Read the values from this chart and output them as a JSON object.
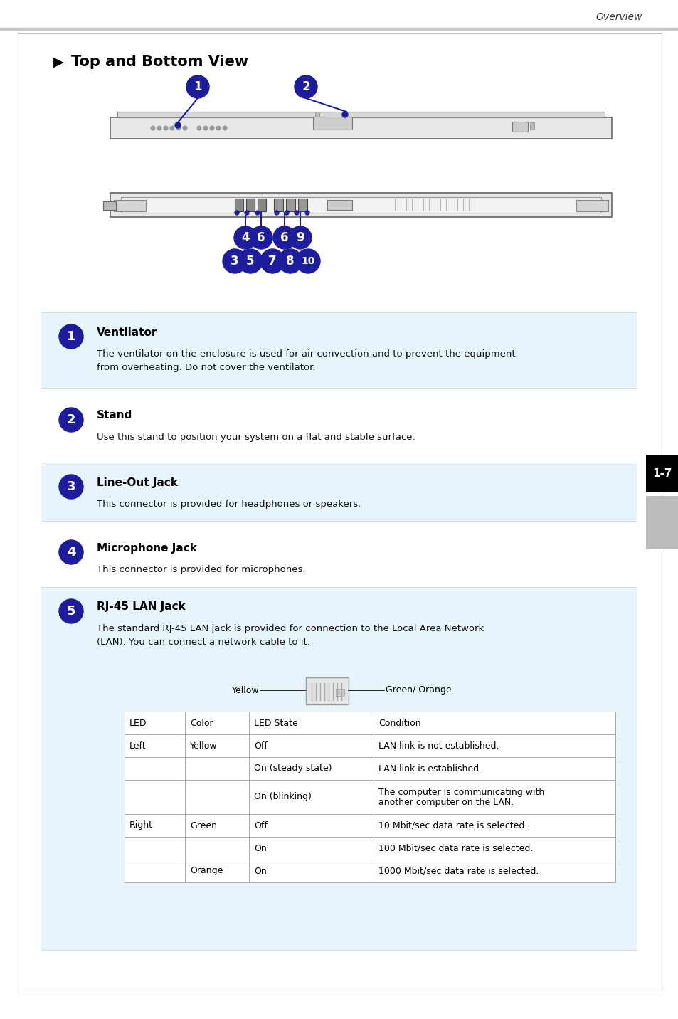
{
  "page_title": "Overview",
  "section_title": "Top and Bottom View",
  "bg_color": "#ffffff",
  "light_blue": "#e8f4fc",
  "dark_blue": "#1c1c9c",
  "items": [
    {
      "num": "1",
      "title": "Ventilator",
      "desc": "The ventilator on the enclosure is used for air convection and to prevent the equipment\nfrom overheating. Do not cover the ventilator.",
      "has_bg": true
    },
    {
      "num": "2",
      "title": "Stand",
      "desc": "Use this stand to position your system on a flat and stable surface.",
      "has_bg": false
    },
    {
      "num": "3",
      "title": "Line-Out Jack",
      "desc": "This connector is provided for headphones or speakers.",
      "has_bg": true
    },
    {
      "num": "4",
      "title": "Microphone Jack",
      "desc": "This connector is provided for microphones.",
      "has_bg": false
    },
    {
      "num": "5",
      "title": "RJ-45 LAN Jack",
      "desc": "The standard RJ-45 LAN jack is provided for connection to the Local Area Network\n(LAN). You can connect a network cable to it.",
      "has_bg": true,
      "has_table": true
    }
  ],
  "table_headers": [
    "LED",
    "Color",
    "LED State",
    "Condition"
  ],
  "table_rows": [
    [
      "Left",
      "Yellow",
      "Off",
      "LAN link is not established."
    ],
    [
      "",
      "",
      "On (steady state)",
      "LAN link is established."
    ],
    [
      "",
      "",
      "On (blinking)",
      "The computer is communicating with\nanother computer on the LAN."
    ],
    [
      "Right",
      "Green",
      "Off",
      "10 Mbit/sec data rate is selected."
    ],
    [
      "",
      "",
      "On",
      "100 Mbit/sec data rate is selected."
    ],
    [
      "",
      "Orange",
      "On",
      "1000 Mbit/sec data rate is selected."
    ]
  ],
  "side_label": "1-7"
}
